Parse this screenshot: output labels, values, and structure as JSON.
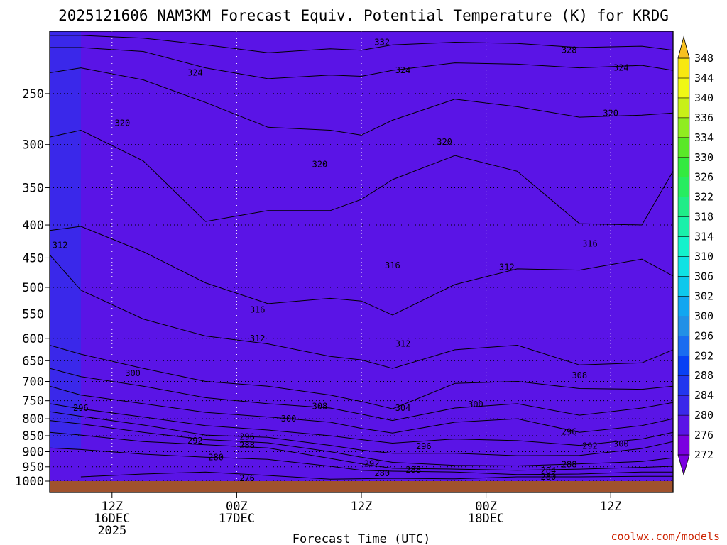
{
  "chart_data": {
    "type": "heatmap",
    "title": "2025121606 NAM3KM Forecast Equiv. Potential Temperature (K) for KRDG",
    "xlabel": "Forecast Time (UTC)",
    "ylabel": "",
    "credit": "coolwx.com/models",
    "x_ticks": [
      {
        "lines": [
          "12Z",
          "16DEC",
          "2025"
        ],
        "hour": 6
      },
      {
        "lines": [
          "00Z",
          "17DEC"
        ],
        "hour": 18
      },
      {
        "lines": [
          "12Z"
        ],
        "hour": 30
      },
      {
        "lines": [
          "00Z",
          "18DEC"
        ],
        "hour": 42
      },
      {
        "lines": [
          "12Z"
        ],
        "hour": 54
      }
    ],
    "xlim": [
      0,
      60
    ],
    "y_axis": {
      "scale": "log",
      "unit": "hPa",
      "ylim": [
        1000,
        200
      ],
      "reversed": true
    },
    "y_ticks": [
      250,
      300,
      350,
      400,
      450,
      500,
      550,
      600,
      650,
      700,
      750,
      800,
      850,
      900,
      950,
      1000
    ],
    "colorbar": {
      "levels": [
        272,
        276,
        280,
        284,
        288,
        292,
        296,
        300,
        302,
        306,
        310,
        314,
        318,
        322,
        326,
        330,
        334,
        336,
        340,
        344,
        348
      ],
      "colors": [
        "#7a00e0",
        "#5a14e6",
        "#3a28ea",
        "#2236ee",
        "#0840f4",
        "#1a6cf0",
        "#2290e6",
        "#12a6f0",
        "#0ec8ec",
        "#10e2e4",
        "#14f2cc",
        "#1af0aa",
        "#20ec88",
        "#28ec60",
        "#34ea40",
        "#5ae828",
        "#90ec20",
        "#c8f018",
        "#f0f814",
        "#f8e810",
        "#f8c020"
      ]
    },
    "series": [
      {
        "level": "276",
        "points": [
          [
            3,
            985
          ],
          [
            9,
            975
          ],
          [
            15,
            968
          ],
          [
            21,
            980
          ],
          [
            27,
            993
          ],
          [
            33,
            990
          ],
          [
            39,
            992
          ],
          [
            45,
            985
          ],
          [
            51,
            985
          ],
          [
            57,
            983
          ],
          [
            60,
            983
          ]
        ]
      },
      {
        "level": "280",
        "points": [
          [
            0,
            888
          ],
          [
            3,
            893
          ],
          [
            9,
            908
          ],
          [
            15,
            918
          ],
          [
            21,
            925
          ],
          [
            27,
            948
          ],
          [
            30,
            962
          ],
          [
            33,
            965
          ],
          [
            39,
            968
          ],
          [
            45,
            977
          ],
          [
            51,
            975
          ],
          [
            57,
            968
          ],
          [
            60,
            968
          ]
        ]
      },
      {
        "level": "284",
        "points": [
          [
            0,
            840
          ],
          [
            3,
            848
          ],
          [
            9,
            868
          ],
          [
            15,
            878
          ],
          [
            21,
            888
          ],
          [
            27,
            922
          ],
          [
            30,
            940
          ],
          [
            33,
            955
          ],
          [
            39,
            958
          ],
          [
            45,
            962
          ],
          [
            51,
            958
          ],
          [
            57,
            952
          ],
          [
            60,
            948
          ]
        ]
      },
      {
        "level": "288",
        "points": [
          [
            0,
            805
          ],
          [
            3,
            815
          ],
          [
            9,
            840
          ],
          [
            15,
            862
          ],
          [
            21,
            872
          ],
          [
            27,
            900
          ],
          [
            30,
            918
          ],
          [
            33,
            935
          ],
          [
            39,
            945
          ],
          [
            45,
            947
          ],
          [
            51,
            940
          ],
          [
            57,
            932
          ],
          [
            60,
            920
          ]
        ]
      },
      {
        "level": "292",
        "points": [
          [
            0,
            780
          ],
          [
            3,
            793
          ],
          [
            9,
            818
          ],
          [
            15,
            848
          ],
          [
            21,
            855
          ],
          [
            27,
            880
          ],
          [
            30,
            895
          ],
          [
            33,
            905
          ],
          [
            39,
            905
          ],
          [
            45,
            913
          ],
          [
            51,
            912
          ],
          [
            57,
            890
          ],
          [
            60,
            868
          ]
        ]
      },
      {
        "level": "296",
        "points": [
          [
            0,
            758
          ],
          [
            3,
            772
          ],
          [
            9,
            795
          ],
          [
            15,
            820
          ],
          [
            21,
            833
          ],
          [
            27,
            850
          ],
          [
            30,
            862
          ],
          [
            33,
            873
          ],
          [
            39,
            860
          ],
          [
            45,
            865
          ],
          [
            51,
            880
          ],
          [
            57,
            860
          ],
          [
            60,
            840
          ]
        ]
      },
      {
        "level": "300",
        "points": [
          [
            0,
            712
          ],
          [
            3,
            735
          ],
          [
            9,
            758
          ],
          [
            15,
            782
          ],
          [
            21,
            795
          ],
          [
            27,
            810
          ],
          [
            30,
            828
          ],
          [
            33,
            842
          ],
          [
            39,
            810
          ],
          [
            45,
            800
          ],
          [
            51,
            840
          ],
          [
            57,
            820
          ],
          [
            60,
            800
          ]
        ]
      },
      {
        "level": "304",
        "points": [
          [
            0,
            668
          ],
          [
            3,
            688
          ],
          [
            9,
            712
          ],
          [
            15,
            742
          ],
          [
            21,
            758
          ],
          [
            27,
            770
          ],
          [
            30,
            787
          ],
          [
            33,
            805
          ],
          [
            39,
            770
          ],
          [
            45,
            758
          ],
          [
            51,
            790
          ],
          [
            57,
            770
          ],
          [
            60,
            755
          ]
        ]
      },
      {
        "level": "308",
        "points": [
          [
            0,
            615
          ],
          [
            3,
            635
          ],
          [
            9,
            668
          ],
          [
            15,
            700
          ],
          [
            21,
            712
          ],
          [
            27,
            735
          ],
          [
            30,
            752
          ],
          [
            33,
            772
          ],
          [
            39,
            705
          ],
          [
            45,
            700
          ],
          [
            51,
            718
          ],
          [
            57,
            720
          ],
          [
            60,
            712
          ]
        ]
      },
      {
        "level": "312",
        "points": [
          [
            0,
            445
          ],
          [
            3,
            505
          ],
          [
            9,
            560
          ],
          [
            15,
            595
          ],
          [
            21,
            612
          ],
          [
            27,
            640
          ],
          [
            30,
            648
          ],
          [
            33,
            668
          ],
          [
            39,
            625
          ],
          [
            45,
            615
          ],
          [
            51,
            660
          ],
          [
            57,
            655
          ],
          [
            60,
            625
          ]
        ]
      },
      {
        "level": "316",
        "points": [
          [
            0,
            408
          ],
          [
            3,
            402
          ],
          [
            9,
            440
          ],
          [
            15,
            492
          ],
          [
            21,
            530
          ],
          [
            27,
            520
          ],
          [
            30,
            525
          ],
          [
            33,
            552
          ],
          [
            39,
            495
          ],
          [
            45,
            468
          ],
          [
            51,
            470
          ],
          [
            57,
            452
          ],
          [
            60,
            480
          ]
        ]
      },
      {
        "level": "320",
        "points": [
          [
            0,
            292
          ],
          [
            3,
            285
          ],
          [
            9,
            318
          ],
          [
            15,
            395
          ],
          [
            21,
            380
          ],
          [
            27,
            380
          ],
          [
            30,
            365
          ],
          [
            33,
            340
          ],
          [
            39,
            312
          ],
          [
            45,
            330
          ],
          [
            51,
            398
          ],
          [
            57,
            400
          ],
          [
            60,
            330
          ]
        ]
      },
      {
        "level": "324",
        "points": [
          [
            0,
            232
          ],
          [
            3,
            228
          ],
          [
            9,
            238
          ],
          [
            15,
            258
          ],
          [
            21,
            282
          ],
          [
            27,
            285
          ],
          [
            30,
            290
          ],
          [
            33,
            275
          ],
          [
            39,
            255
          ],
          [
            45,
            262
          ],
          [
            51,
            272
          ],
          [
            57,
            270
          ],
          [
            60,
            268
          ]
        ]
      },
      {
        "level": "328",
        "points": [
          [
            0,
            212
          ],
          [
            3,
            212
          ],
          [
            9,
            215
          ],
          [
            15,
            228
          ],
          [
            21,
            237
          ],
          [
            27,
            234
          ],
          [
            30,
            235
          ],
          [
            33,
            230
          ],
          [
            39,
            224
          ],
          [
            45,
            225
          ],
          [
            51,
            228
          ],
          [
            57,
            226
          ],
          [
            60,
            230
          ]
        ]
      },
      {
        "level": "332",
        "points": [
          [
            0,
            203
          ],
          [
            3,
            203
          ],
          [
            9,
            205
          ],
          [
            15,
            210
          ],
          [
            21,
            216
          ],
          [
            27,
            213
          ],
          [
            30,
            214
          ],
          [
            33,
            210
          ],
          [
            39,
            208
          ],
          [
            45,
            209
          ],
          [
            51,
            212
          ],
          [
            57,
            211
          ],
          [
            60,
            214
          ]
        ]
      }
    ],
    "contour_labels": [
      {
        "text": "332",
        "hour": 32,
        "p": 208
      },
      {
        "text": "328",
        "hour": 50,
        "p": 214
      },
      {
        "text": "324",
        "hour": 14,
        "p": 232
      },
      {
        "text": "324",
        "hour": 34,
        "p": 230
      },
      {
        "text": "324",
        "hour": 55,
        "p": 228
      },
      {
        "text": "320",
        "hour": 7,
        "p": 278
      },
      {
        "text": "320",
        "hour": 26,
        "p": 322
      },
      {
        "text": "320",
        "hour": 38,
        "p": 297
      },
      {
        "text": "320",
        "hour": 54,
        "p": 268
      },
      {
        "text": "316",
        "hour": 33,
        "p": 462
      },
      {
        "text": "316",
        "hour": 52,
        "p": 428
      },
      {
        "text": "316",
        "hour": 20,
        "p": 542
      },
      {
        "text": "312",
        "hour": 1,
        "p": 430
      },
      {
        "text": "312",
        "hour": 20,
        "p": 600
      },
      {
        "text": "312",
        "hour": 34,
        "p": 612
      },
      {
        "text": "312",
        "hour": 44,
        "p": 465
      },
      {
        "text": "308",
        "hour": 26,
        "p": 765
      },
      {
        "text": "308",
        "hour": 51,
        "p": 685
      },
      {
        "text": "304",
        "hour": 34,
        "p": 770
      },
      {
        "text": "300",
        "hour": 8,
        "p": 680
      },
      {
        "text": "300",
        "hour": 23,
        "p": 800
      },
      {
        "text": "300",
        "hour": 41,
        "p": 760
      },
      {
        "text": "300",
        "hour": 55,
        "p": 875
      },
      {
        "text": "296",
        "hour": 3,
        "p": 770
      },
      {
        "text": "296",
        "hour": 19,
        "p": 853
      },
      {
        "text": "296",
        "hour": 36,
        "p": 883
      },
      {
        "text": "296",
        "hour": 50,
        "p": 838
      },
      {
        "text": "292",
        "hour": 14,
        "p": 865
      },
      {
        "text": "292",
        "hour": 31,
        "p": 940
      },
      {
        "text": "292",
        "hour": 52,
        "p": 882
      },
      {
        "text": "288",
        "hour": 19,
        "p": 880
      },
      {
        "text": "288",
        "hour": 35,
        "p": 960
      },
      {
        "text": "288",
        "hour": 50,
        "p": 942
      },
      {
        "text": "284",
        "hour": 48,
        "p": 963
      },
      {
        "text": "280",
        "hour": 16,
        "p": 918
      },
      {
        "text": "280",
        "hour": 32,
        "p": 972
      },
      {
        "text": "280",
        "hour": 48,
        "p": 985
      },
      {
        "text": "276",
        "hour": 19,
        "p": 990
      }
    ]
  }
}
